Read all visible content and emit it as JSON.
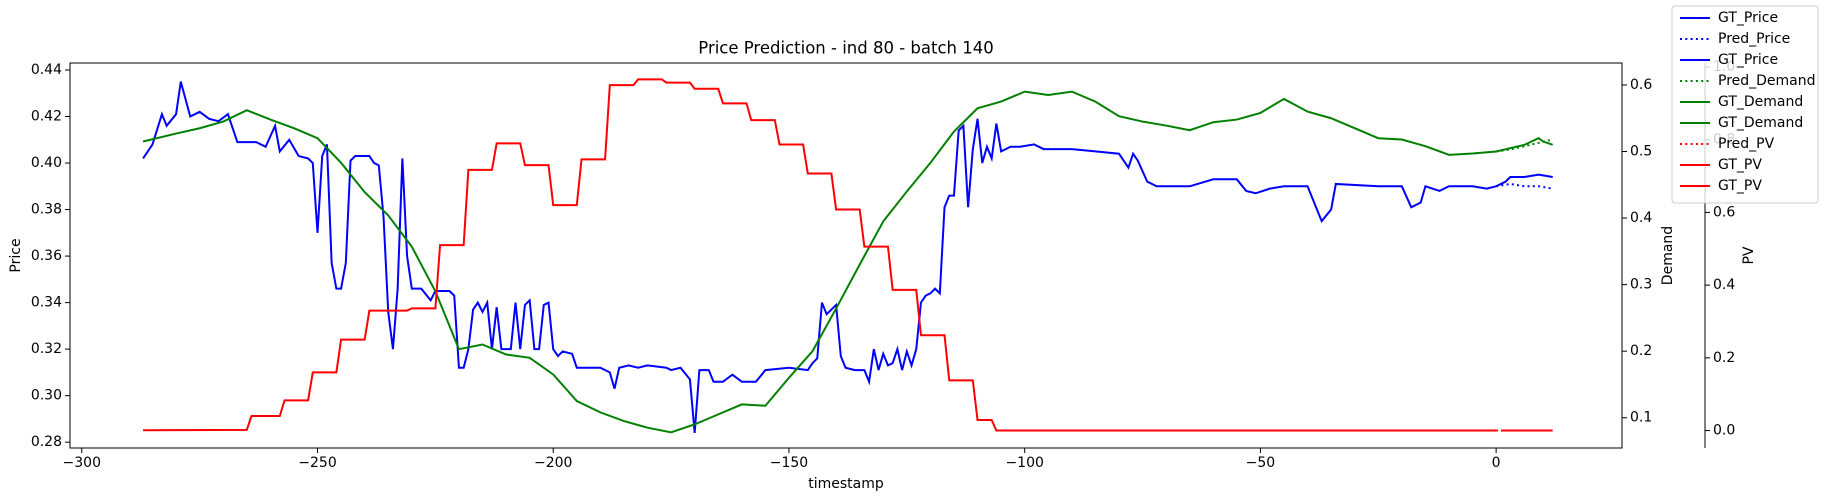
{
  "chart_data": {
    "type": "line",
    "title": "Price Prediction - ind 80 - batch 140",
    "x_label": "timestamp",
    "y_label": "Price",
    "y2_label": "Demand",
    "y3_label": "PV",
    "xlim": [
      -302.5,
      26.7
    ],
    "xticks": [
      {
        "value": -300,
        "label": "−300"
      },
      {
        "value": -250,
        "label": "−250"
      },
      {
        "value": -200,
        "label": "−200"
      },
      {
        "value": -150,
        "label": "−150"
      },
      {
        "value": -100,
        "label": "−100"
      },
      {
        "value": -50,
        "label": "−50"
      },
      0
    ],
    "ylim": [
      0.2775,
      0.443
    ],
    "yticks": [
      0.28,
      {
        "value": 0.3,
        "label": "0.30"
      },
      0.32,
      0.34,
      0.36,
      0.38,
      {
        "value": 0.4,
        "label": "0.40"
      },
      0.42,
      0.44
    ],
    "y2lim": [
      0.0545,
      0.633
    ],
    "y2ticks": [
      0.1,
      0.2,
      0.3,
      0.4,
      0.5,
      0.6
    ],
    "y3lim": [
      -0.048,
      1.011
    ],
    "y3ticks": [
      {
        "value": 0,
        "label": "0.0"
      },
      0.2,
      0.4,
      0.6,
      0.8,
      {
        "value": 1,
        "label": "1.0"
      }
    ],
    "label_colors": {
      "y": "#0000ff",
      "y2": "#008000",
      "y3": "#ff0000"
    },
    "legend": "upper right",
    "series": [
      {
        "name": "GT_Price",
        "color": "#0000ff",
        "axis": "y",
        "linestyle": "solid",
        "x": [
          -287,
          -285,
          -283,
          -282,
          -280,
          -279,
          -277,
          -275,
          -273,
          -271,
          -269,
          -267,
          -263,
          -261,
          -259,
          -258,
          -256,
          -254,
          -252,
          -251,
          -250,
          -249,
          -248,
          -247,
          -246,
          -245,
          -244,
          -243,
          -242,
          -239,
          -238,
          -237,
          -236,
          -235,
          -234,
          -233,
          -232,
          -231,
          -230,
          -228,
          -226,
          -225,
          -222,
          -221,
          -220,
          -219,
          -218,
          -217,
          -216,
          -215,
          -214,
          -213,
          -212,
          -211,
          -209,
          -208,
          -207,
          -206,
          -205,
          -204,
          -203,
          -202,
          -201,
          -200,
          -199,
          -198,
          -196,
          -195,
          -190,
          -188,
          -187,
          -186,
          -184,
          -182,
          -180,
          -176,
          -175,
          -173,
          -171,
          -170,
          -169,
          -167,
          -166,
          -164,
          -162,
          -160,
          -157,
          -155,
          -150,
          -146,
          -145,
          -144,
          -143,
          -142,
          -140,
          -139,
          -138,
          -136,
          -134,
          -133,
          -132,
          -131,
          -130,
          -129,
          -128,
          -127,
          -126,
          -125,
          -124,
          -123,
          -122,
          -121,
          -120,
          -119,
          -118,
          -117,
          -116,
          -115,
          -114,
          -113,
          -112,
          -111,
          -110,
          -109,
          -108,
          -107,
          -106,
          -105,
          -103,
          -101,
          -98,
          -96,
          -90,
          -85,
          -80,
          -78,
          -77,
          -76,
          -74,
          -72,
          -65,
          -60,
          -55,
          -53,
          -51,
          -48,
          -45,
          -40,
          -37,
          -35,
          -34,
          -25,
          -20,
          -18,
          -16,
          -15,
          -12,
          -10,
          -5,
          -2,
          0
        ],
        "values": [
          0.402,
          0.408,
          0.421,
          0.416,
          0.421,
          0.435,
          0.42,
          0.422,
          0.419,
          0.418,
          0.421,
          0.409,
          0.409,
          0.407,
          0.416,
          0.405,
          0.41,
          0.403,
          0.402,
          0.4,
          0.37,
          0.403,
          0.408,
          0.357,
          0.346,
          0.346,
          0.357,
          0.401,
          0.403,
          0.403,
          0.4,
          0.399,
          0.377,
          0.336,
          0.32,
          0.346,
          0.402,
          0.36,
          0.346,
          0.346,
          0.341,
          0.345,
          0.345,
          0.343,
          0.312,
          0.312,
          0.32,
          0.337,
          0.34,
          0.336,
          0.34,
          0.32,
          0.338,
          0.32,
          0.32,
          0.34,
          0.32,
          0.339,
          0.341,
          0.32,
          0.32,
          0.339,
          0.34,
          0.32,
          0.317,
          0.319,
          0.318,
          0.312,
          0.312,
          0.31,
          0.303,
          0.312,
          0.313,
          0.312,
          0.313,
          0.312,
          0.311,
          0.312,
          0.307,
          0.284,
          0.311,
          0.311,
          0.306,
          0.306,
          0.309,
          0.306,
          0.306,
          0.311,
          0.312,
          0.311,
          0.314,
          0.316,
          0.34,
          0.335,
          0.339,
          0.317,
          0.312,
          0.311,
          0.311,
          0.306,
          0.32,
          0.311,
          0.318,
          0.313,
          0.314,
          0.32,
          0.311,
          0.319,
          0.313,
          0.32,
          0.34,
          0.343,
          0.344,
          0.346,
          0.344,
          0.381,
          0.386,
          0.386,
          0.414,
          0.416,
          0.381,
          0.406,
          0.419,
          0.4,
          0.407,
          0.402,
          0.417,
          0.405,
          0.407,
          0.407,
          0.408,
          0.406,
          0.406,
          0.405,
          0.404,
          0.398,
          0.404,
          0.401,
          0.392,
          0.39,
          0.39,
          0.393,
          0.393,
          0.388,
          0.387,
          0.389,
          0.39,
          0.39,
          0.375,
          0.38,
          0.391,
          0.39,
          0.39,
          0.381,
          0.383,
          0.39,
          0.388,
          0.39,
          0.39,
          0.389,
          0.39
        ]
      },
      {
        "name": "Pred_Price",
        "color": "#0000ff",
        "axis": "y",
        "linestyle": "dotted",
        "x": [
          0,
          3,
          6,
          9,
          12
        ],
        "values": [
          0.39,
          0.391,
          0.39,
          0.39,
          0.389
        ]
      },
      {
        "name": "GT_Price",
        "color": "#0000ff",
        "axis": "y",
        "linestyle": "solid",
        "x": [
          0,
          2,
          3,
          6,
          9,
          12
        ],
        "values": [
          0.39,
          0.392,
          0.394,
          0.394,
          0.395,
          0.394
        ]
      },
      {
        "name": "Pred_Demand",
        "color": "#008000",
        "axis": "y2",
        "linestyle": "dotted",
        "x": [
          0,
          3,
          6,
          9,
          12
        ],
        "values": [
          0.5,
          0.503,
          0.508,
          0.513,
          0.518
        ]
      },
      {
        "name": "GT_Demand",
        "color": "#008000",
        "axis": "y2",
        "linestyle": "solid",
        "x": [
          -287,
          -280,
          -275,
          -270,
          -265,
          -260,
          -255,
          -250,
          -245,
          -240,
          -235,
          -230,
          -225,
          -220,
          -215,
          -210,
          -205,
          -200,
          -195,
          -190,
          -185,
          -180,
          -175,
          -170,
          -165,
          -160,
          -155,
          -150,
          -145,
          -140,
          -135,
          -130,
          -125,
          -120,
          -115,
          -110,
          -105,
          -100,
          -95,
          -90,
          -85,
          -80,
          -75,
          -70,
          -65,
          -60,
          -55,
          -50,
          -45,
          -40,
          -35,
          -30,
          -25,
          -20,
          -15,
          -10,
          -5,
          0
        ],
        "values": [
          0.515,
          0.527,
          0.535,
          0.545,
          0.562,
          0.548,
          0.535,
          0.52,
          0.483,
          0.439,
          0.404,
          0.357,
          0.29,
          0.203,
          0.21,
          0.195,
          0.19,
          0.165,
          0.125,
          0.108,
          0.095,
          0.085,
          0.078,
          0.09,
          0.105,
          0.12,
          0.118,
          0.16,
          0.2,
          0.264,
          0.33,
          0.395,
          0.44,
          0.483,
          0.53,
          0.565,
          0.575,
          0.59,
          0.585,
          0.59,
          0.575,
          0.553,
          0.545,
          0.539,
          0.532,
          0.544,
          0.548,
          0.558,
          0.579,
          0.56,
          0.55,
          0.535,
          0.52,
          0.518,
          0.508,
          0.495,
          0.497,
          0.5
        ]
      },
      {
        "name": "GT_Demand",
        "color": "#008000",
        "axis": "y2",
        "linestyle": "solid",
        "x": [
          0,
          3,
          6,
          9,
          10,
          12
        ],
        "values": [
          0.5,
          0.505,
          0.51,
          0.52,
          0.515,
          0.51
        ]
      },
      {
        "name": "Pred_PV",
        "color": "#ff0000",
        "axis": "y3",
        "linestyle": "dotted",
        "x": [
          0,
          3,
          6,
          9,
          12
        ],
        "values": [
          0,
          0,
          0,
          0,
          0
        ]
      },
      {
        "name": "GT_PV",
        "color": "#ff0000",
        "axis": "y3",
        "linestyle": "solid",
        "x": [
          -287,
          -265,
          -264,
          -258,
          -257,
          -252,
          -251,
          -246,
          -245,
          -240,
          -239,
          -231,
          -230,
          -225,
          -224,
          -219,
          -218,
          -213,
          -212,
          -207,
          -206,
          -201,
          -200,
          -195,
          -194,
          -189,
          -188,
          -183,
          -182,
          -177,
          -176,
          -171,
          -170,
          -165,
          -164,
          -159,
          -158,
          -153,
          -152,
          -147,
          -146,
          -141,
          -140,
          -135,
          -134,
          -129,
          -128,
          -123,
          -122,
          -117,
          -116,
          -111,
          -110,
          -107,
          -106,
          0
        ],
        "values": [
          0.001,
          0.002,
          0.04,
          0.04,
          0.083,
          0.083,
          0.16,
          0.16,
          0.25,
          0.25,
          0.33,
          0.33,
          0.336,
          0.336,
          0.51,
          0.51,
          0.717,
          0.717,
          0.79,
          0.79,
          0.73,
          0.73,
          0.62,
          0.62,
          0.746,
          0.746,
          0.95,
          0.95,
          0.966,
          0.966,
          0.957,
          0.957,
          0.94,
          0.94,
          0.9,
          0.9,
          0.854,
          0.854,
          0.787,
          0.787,
          0.707,
          0.707,
          0.608,
          0.608,
          0.506,
          0.506,
          0.387,
          0.387,
          0.262,
          0.262,
          0.138,
          0.138,
          0.029,
          0.029,
          0,
          0
        ]
      },
      {
        "name": "GT_PV",
        "color": "#ff0000",
        "axis": "y3",
        "linestyle": "solid",
        "x": [
          1,
          3,
          6,
          9,
          12
        ],
        "values": [
          0,
          0,
          0,
          0,
          0
        ]
      }
    ]
  }
}
